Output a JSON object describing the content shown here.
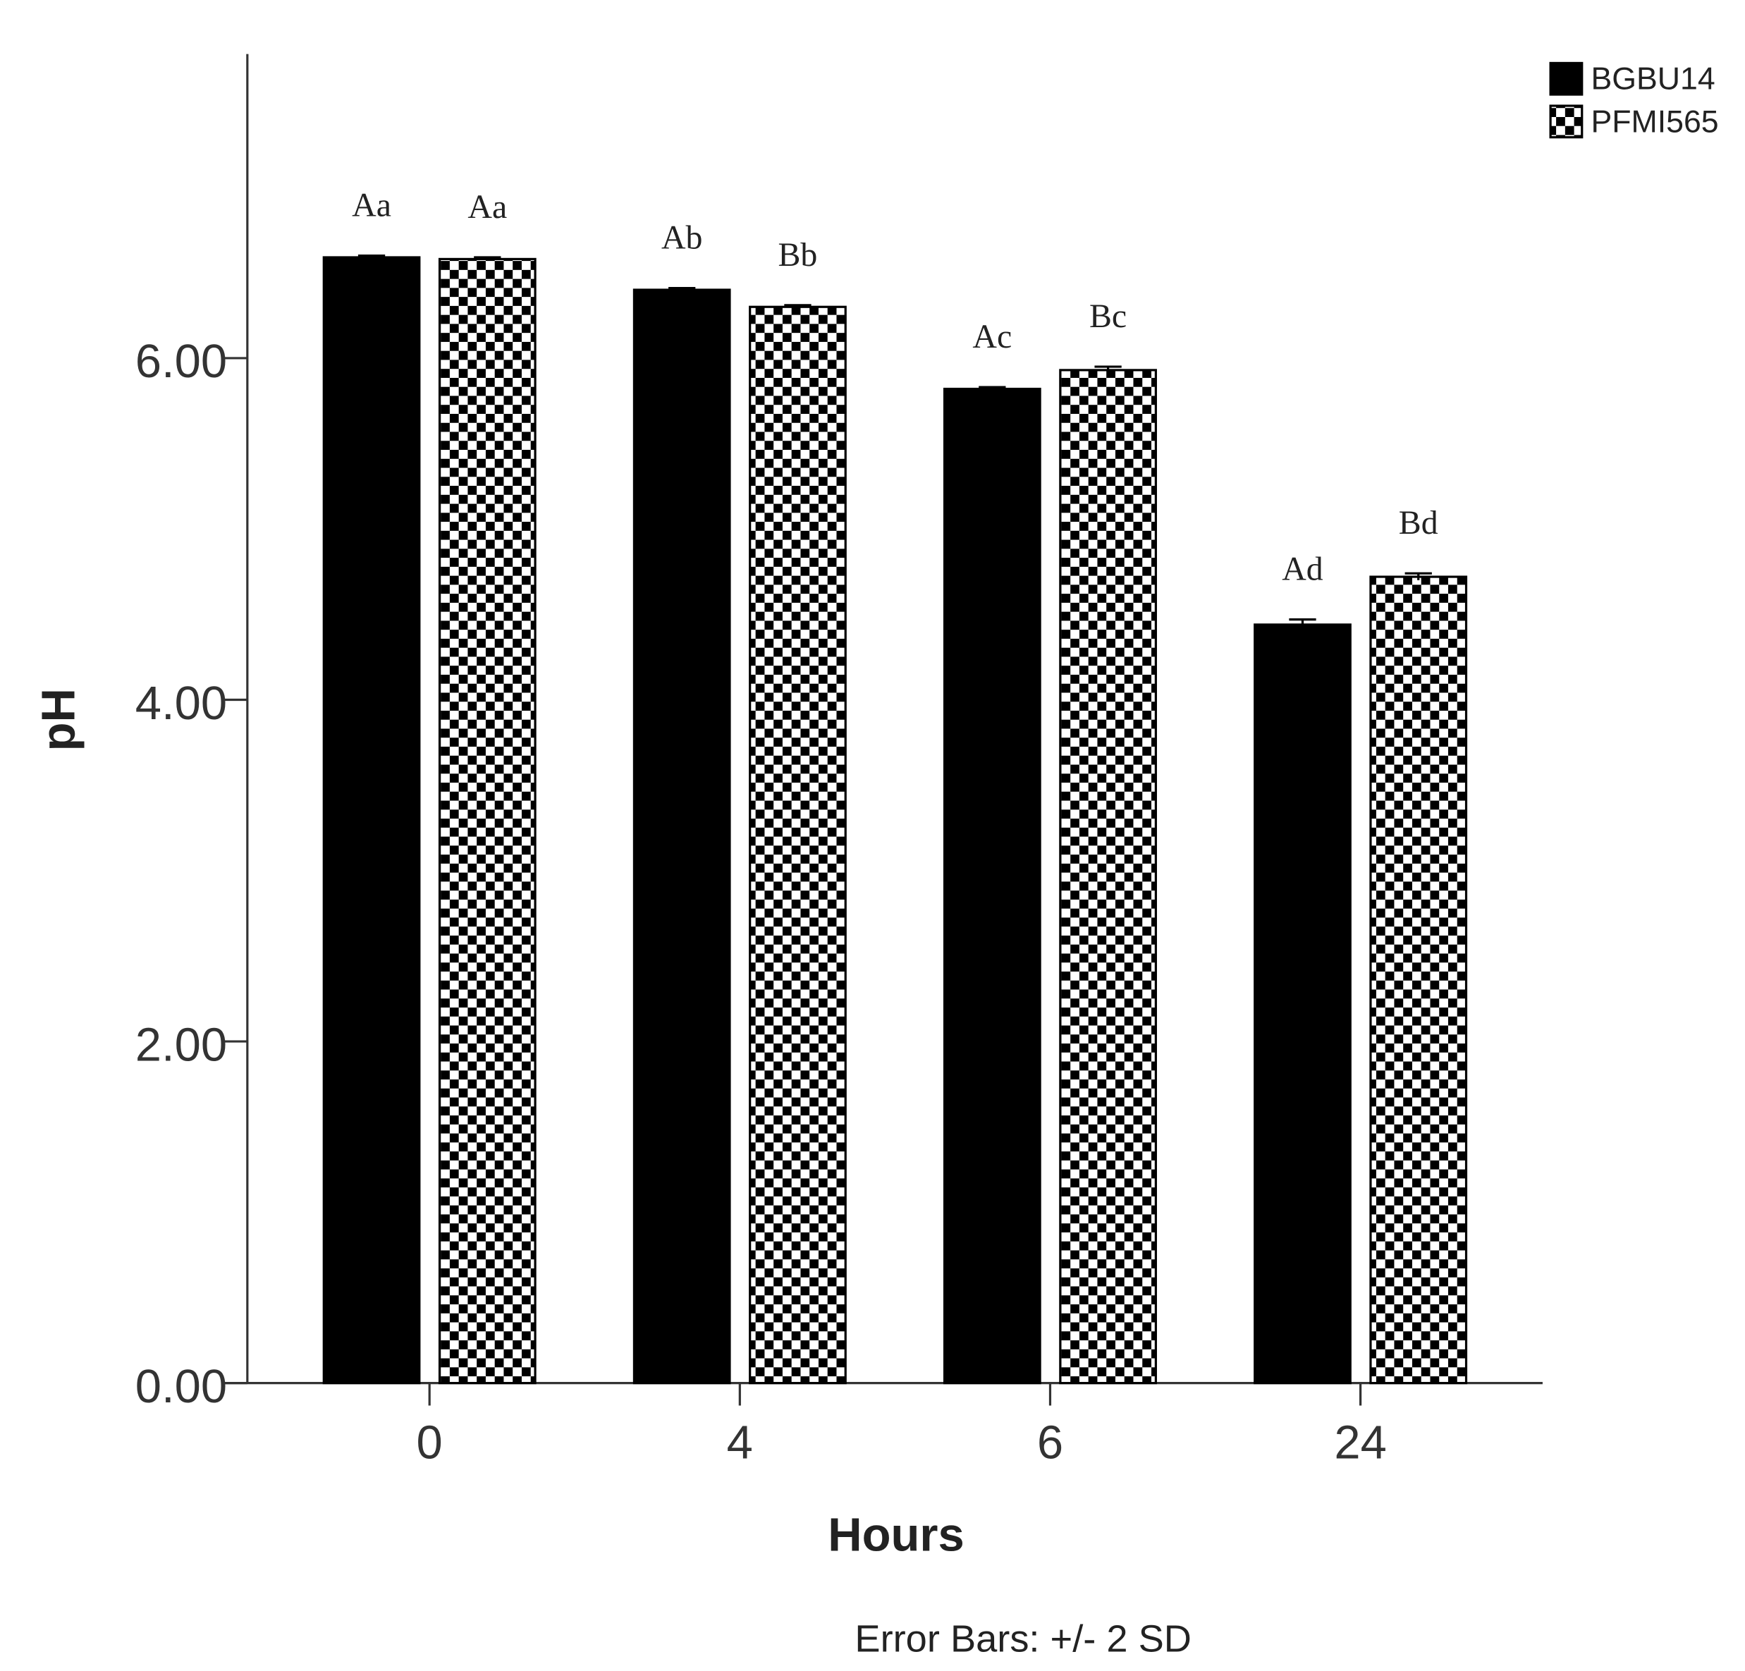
{
  "chart_data": {
    "type": "bar",
    "x_label": "Hours",
    "y_label": "pH",
    "footnote": "Error Bars: +/- 2 SD",
    "categories": [
      "0",
      "4",
      "6",
      "24"
    ],
    "series": [
      {
        "name": "BGBU14",
        "color": "#000000",
        "pattern": "solid",
        "values": [
          6.59,
          6.4,
          5.82,
          4.44
        ],
        "errors": [
          0.01,
          0.01,
          0.01,
          0.03
        ],
        "letters": [
          "Aa",
          "Ab",
          "Ac",
          "Ad"
        ]
      },
      {
        "name": "PFMI565",
        "color": "#000000",
        "pattern": "checker",
        "values": [
          6.58,
          6.3,
          5.93,
          4.72
        ],
        "errors": [
          0.01,
          0.01,
          0.02,
          0.02
        ],
        "letters": [
          "Aa",
          "Bb",
          "Bc",
          "Bd"
        ]
      }
    ],
    "ylim": [
      0,
      7.78
    ],
    "yticks": [
      {
        "value": 0,
        "label": "0.00"
      },
      {
        "value": 2,
        "label": "2.00"
      },
      {
        "value": 4,
        "label": "4.00"
      },
      {
        "value": 6,
        "label": "6.00"
      }
    ],
    "legend": "top-right",
    "grid": false
  }
}
